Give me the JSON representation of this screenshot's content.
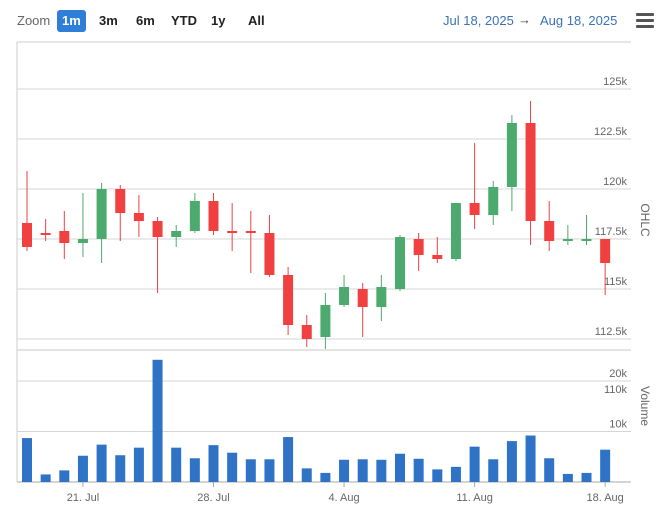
{
  "toolbar": {
    "zoom_label": "Zoom",
    "buttons": [
      "1m",
      "3m",
      "6m",
      "YTD",
      "1y",
      "All"
    ],
    "active": "1m",
    "range_from": "Jul 18, 2025",
    "range_arrow": "→",
    "range_to": "Aug 18, 2025"
  },
  "colors": {
    "up": "#4daa6f",
    "down": "#f04040",
    "volume": "#2f73c6",
    "accent": "#2f7ed8"
  },
  "chart_data": [
    {
      "type": "candlestick",
      "ylabel": "OHLC",
      "ylim": [
        111500,
        128000
      ],
      "yticks": [
        112500,
        115000,
        117500,
        120000,
        122500,
        125000
      ],
      "ytick_labels": [
        "112.5k",
        "115k",
        "117.5k",
        "120k",
        "122.5k",
        "125k"
      ],
      "x_ticks": [
        "21. Jul",
        "28. Jul",
        "4. Aug",
        "11. Aug",
        "18. Aug"
      ],
      "grid": true,
      "candles": [
        {
          "date": "2025-07-18",
          "o": 118300,
          "h": 120900,
          "l": 116900,
          "c": 117100
        },
        {
          "date": "2025-07-19",
          "o": 117800,
          "h": 118500,
          "l": 117400,
          "c": 117700
        },
        {
          "date": "2025-07-20",
          "o": 117900,
          "h": 118900,
          "l": 116500,
          "c": 117300
        },
        {
          "date": "2025-07-21",
          "o": 117300,
          "h": 119800,
          "l": 116600,
          "c": 117500
        },
        {
          "date": "2025-07-22",
          "o": 117500,
          "h": 120300,
          "l": 116300,
          "c": 120000
        },
        {
          "date": "2025-07-23",
          "o": 120000,
          "h": 120200,
          "l": 117400,
          "c": 118800
        },
        {
          "date": "2025-07-24",
          "o": 118800,
          "h": 119700,
          "l": 117600,
          "c": 118400
        },
        {
          "date": "2025-07-25",
          "o": 118400,
          "h": 118600,
          "l": 114800,
          "c": 117600
        },
        {
          "date": "2025-07-26",
          "o": 117600,
          "h": 118200,
          "l": 117100,
          "c": 117900
        },
        {
          "date": "2025-07-27",
          "o": 117900,
          "h": 119800,
          "l": 117800,
          "c": 119400
        },
        {
          "date": "2025-07-28",
          "o": 119400,
          "h": 119800,
          "l": 117700,
          "c": 117900
        },
        {
          "date": "2025-07-29",
          "o": 117900,
          "h": 119300,
          "l": 116900,
          "c": 117800
        },
        {
          "date": "2025-07-30",
          "o": 117900,
          "h": 118900,
          "l": 115800,
          "c": 117800
        },
        {
          "date": "2025-07-31",
          "o": 117800,
          "h": 118700,
          "l": 115600,
          "c": 115700
        },
        {
          "date": "2025-08-01",
          "o": 115700,
          "h": 116100,
          "l": 112700,
          "c": 113200
        },
        {
          "date": "2025-08-02",
          "o": 113200,
          "h": 113700,
          "l": 112100,
          "c": 112500
        },
        {
          "date": "2025-08-03",
          "o": 112600,
          "h": 114800,
          "l": 112000,
          "c": 114200
        },
        {
          "date": "2025-08-04",
          "o": 114200,
          "h": 115700,
          "l": 114100,
          "c": 115100
        },
        {
          "date": "2025-08-05",
          "o": 115000,
          "h": 115300,
          "l": 112600,
          "c": 114100
        },
        {
          "date": "2025-08-06",
          "o": 114100,
          "h": 115700,
          "l": 113400,
          "c": 115100
        },
        {
          "date": "2025-08-07",
          "o": 115000,
          "h": 117700,
          "l": 114900,
          "c": 117600
        },
        {
          "date": "2025-08-08",
          "o": 117500,
          "h": 117800,
          "l": 115900,
          "c": 116700
        },
        {
          "date": "2025-08-09",
          "o": 116700,
          "h": 117600,
          "l": 116300,
          "c": 116500
        },
        {
          "date": "2025-08-10",
          "o": 116500,
          "h": 119300,
          "l": 116400,
          "c": 119300
        },
        {
          "date": "2025-08-11",
          "o": 119300,
          "h": 122300,
          "l": 118000,
          "c": 118700
        },
        {
          "date": "2025-08-12",
          "o": 118700,
          "h": 120400,
          "l": 118200,
          "c": 120100
        },
        {
          "date": "2025-08-13",
          "o": 120100,
          "h": 123700,
          "l": 118900,
          "c": 123300
        },
        {
          "date": "2025-08-14",
          "o": 123300,
          "h": 124400,
          "l": 117200,
          "c": 118400
        },
        {
          "date": "2025-08-15",
          "o": 118400,
          "h": 119400,
          "l": 116900,
          "c": 117400
        },
        {
          "date": "2025-08-16",
          "o": 117400,
          "h": 118200,
          "l": 117200,
          "c": 117500
        },
        {
          "date": "2025-08-17",
          "o": 117500,
          "h": 118700,
          "l": 117200,
          "c": 117500
        },
        {
          "date": "2025-08-18",
          "o": 117500,
          "h": 117500,
          "l": 114700,
          "c": 116300
        }
      ]
    },
    {
      "type": "bar",
      "ylabel": "Volume",
      "ylim": [
        0,
        30000
      ],
      "yticks": [
        10000,
        20000
      ],
      "ytick_labels": [
        "10k",
        "20k"
      ],
      "extra_tick_labels": [
        "110k"
      ],
      "values": [
        8700,
        1500,
        2300,
        5200,
        7400,
        5300,
        6800,
        24200,
        6800,
        4700,
        7300,
        5800,
        4500,
        4500,
        8900,
        2700,
        1800,
        4400,
        4500,
        4400,
        5600,
        4600,
        2500,
        3000,
        7000,
        4500,
        8100,
        9200,
        4700,
        1600,
        1800,
        6400
      ]
    }
  ]
}
